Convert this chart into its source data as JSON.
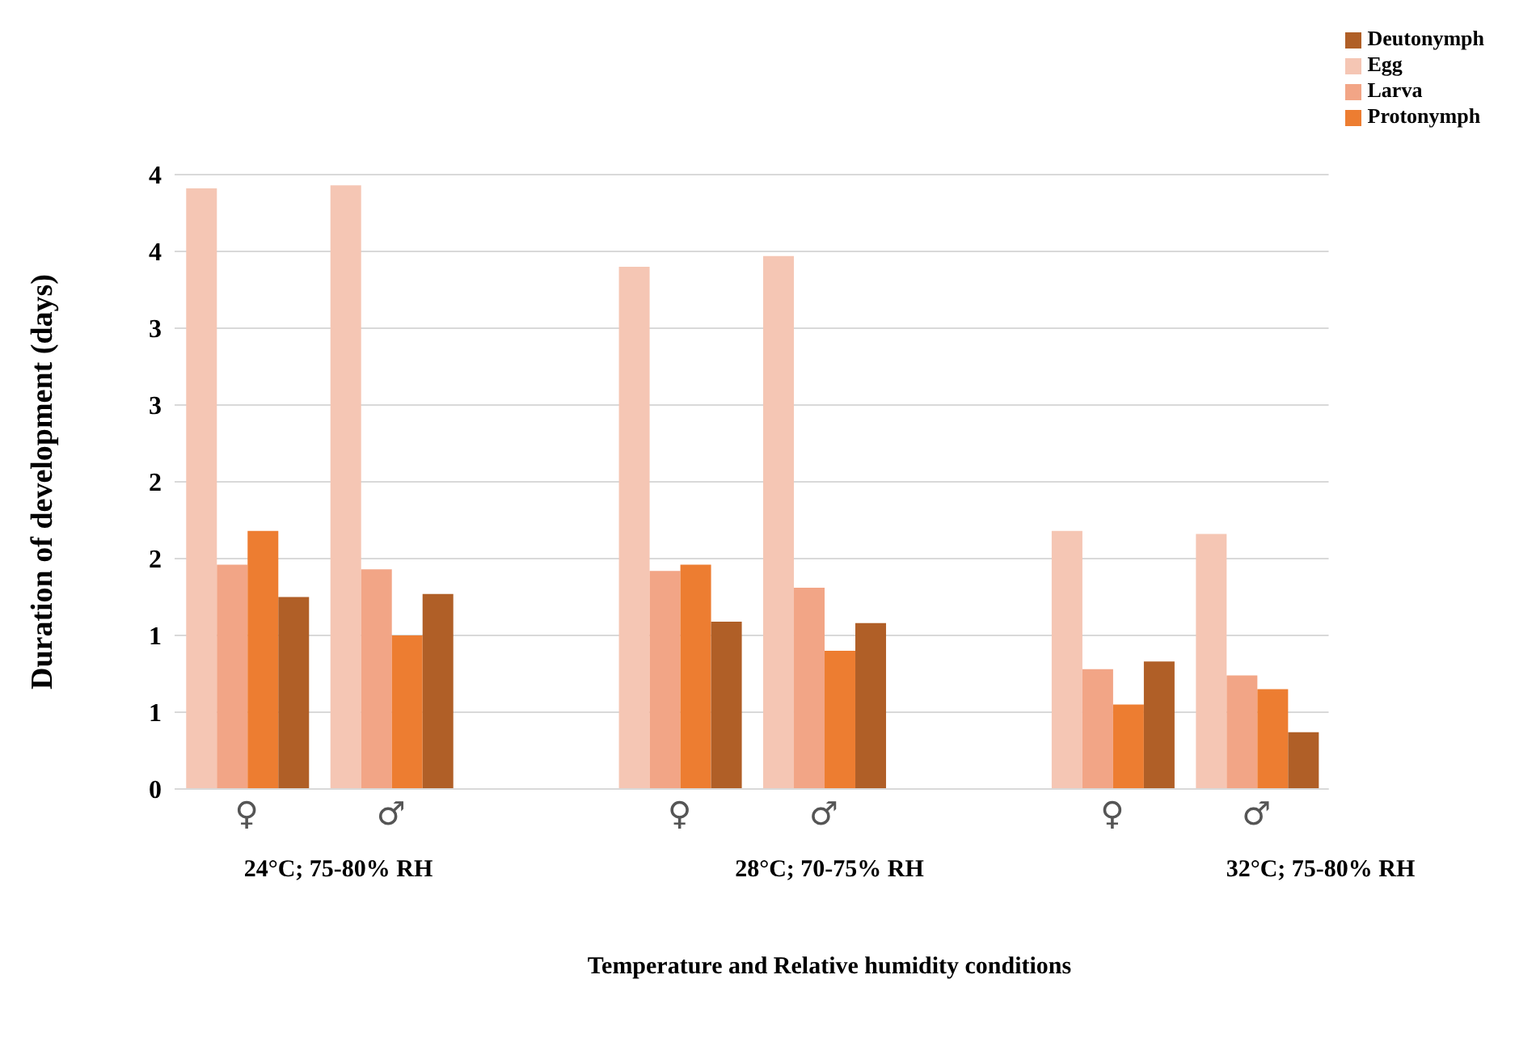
{
  "chart_data": {
    "type": "bar",
    "xlabel": "Temperature and Relative humidity conditions",
    "ylabel": "Duration of development (days)",
    "categories": [
      "♀",
      "♂",
      null,
      "♀",
      "♂",
      null,
      "♀",
      "♂"
    ],
    "series": [
      {
        "name": "Egg",
        "color": "#f5c6b4",
        "values": [
          3.91,
          3.93,
          null,
          3.4,
          3.47,
          null,
          1.68,
          1.66
        ]
      },
      {
        "name": "Larva",
        "color": "#f2a586",
        "values": [
          1.46,
          1.43,
          null,
          1.42,
          1.31,
          null,
          0.78,
          0.74
        ]
      },
      {
        "name": "Protonymph",
        "color": "#ed7d31",
        "values": [
          1.68,
          1.0,
          null,
          1.46,
          0.9,
          null,
          0.55,
          0.65
        ]
      },
      {
        "name": "Deutonymph",
        "color": "#b05f27",
        "values": [
          1.25,
          1.27,
          null,
          1.09,
          1.08,
          null,
          0.83,
          0.37
        ]
      }
    ],
    "ylim": [
      0,
      4
    ],
    "yticks": [
      0,
      {
        "value": 0.5,
        "label": "1"
      },
      1,
      {
        "value": 1.5,
        "label": "2"
      },
      2,
      {
        "value": 2.5,
        "label": "3"
      },
      3,
      {
        "value": 3.5,
        "label": "4"
      },
      4
    ],
    "annotations": [
      "24°C; 75-80% RH",
      "28°C; 70-75% RH",
      "32°C; 75-80% RH"
    ],
    "grid": "y",
    "legend": "top right"
  }
}
